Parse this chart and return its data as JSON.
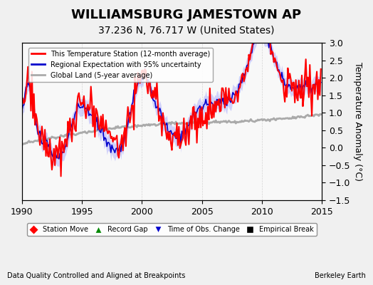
{
  "title": "WILLIAMSBURG JAMESTOWN AP",
  "subtitle": "37.236 N, 76.717 W (United States)",
  "ylabel": "Temperature Anomaly (°C)",
  "xlabel_left": "Data Quality Controlled and Aligned at Breakpoints",
  "xlabel_right": "Berkeley Earth",
  "xlim": [
    1990,
    2015
  ],
  "ylim": [
    -1.5,
    3.0
  ],
  "yticks": [
    -1.5,
    -1.0,
    -0.5,
    0.0,
    0.5,
    1.0,
    1.5,
    2.0,
    2.5,
    3.0
  ],
  "xticks": [
    1990,
    1995,
    2000,
    2005,
    2010,
    2015
  ],
  "legend_entries": [
    {
      "label": "This Temperature Station (12-month average)",
      "color": "#FF0000",
      "lw": 2.0
    },
    {
      "label": "Regional Expectation with 95% uncertainty",
      "color": "#0000CC",
      "lw": 1.5
    },
    {
      "label": "Global Land (5-year average)",
      "color": "#AAAAAA",
      "lw": 2.0
    }
  ],
  "marker_legend": [
    {
      "label": "Station Move",
      "color": "#FF0000",
      "marker": "D"
    },
    {
      "label": "Record Gap",
      "color": "#008800",
      "marker": "^"
    },
    {
      "label": "Time of Obs. Change",
      "color": "#0000CC",
      "marker": "v"
    },
    {
      "label": "Empirical Break",
      "color": "#000000",
      "marker": "s"
    }
  ],
  "background_color": "#F0F0F0",
  "plot_bg_color": "#F8F8F8",
  "grid_color": "#CCCCCC",
  "title_fontsize": 13,
  "subtitle_fontsize": 10,
  "axis_fontsize": 8,
  "tick_fontsize": 9
}
